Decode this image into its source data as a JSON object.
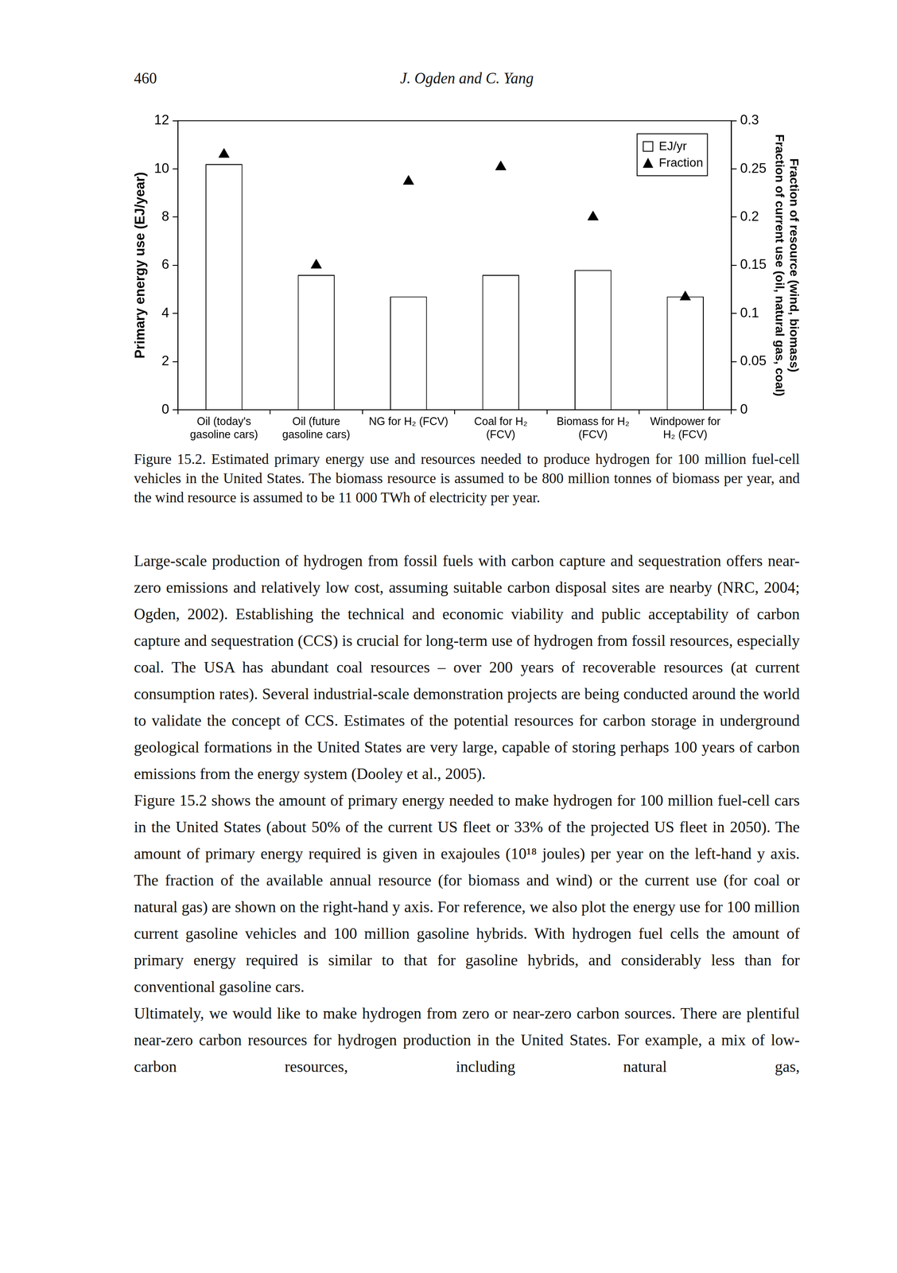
{
  "header": {
    "page": "460",
    "running_head": "J. Ogden and C. Yang"
  },
  "chart_data": {
    "type": "bar",
    "categories": [
      [
        "Oil (today's",
        "gasoline cars)"
      ],
      [
        "Oil (future",
        "gasoline cars)"
      ],
      [
        "NG for H₂ (FCV)"
      ],
      [
        "Coal for H₂",
        "(FCV)"
      ],
      [
        "Biomass for H₂",
        "(FCV)"
      ],
      [
        "Windpower for",
        "H₂ (FCV)"
      ]
    ],
    "series": [
      {
        "name": "EJ/yr",
        "type": "bar",
        "color": "#ffffff",
        "values": [
          10.2,
          5.6,
          4.7,
          5.6,
          5.8,
          4.7
        ]
      },
      {
        "name": "Fraction",
        "type": "scatter",
        "marker": "triangle",
        "color": "#000000",
        "axis": "y2",
        "values": [
          0.265,
          0.15,
          0.237,
          0.252,
          0.2,
          0.117
        ]
      }
    ],
    "y_label": "Primary energy use (EJ/year)",
    "y2_label": [
      "Fraction of resource (wind, biomass)",
      "Fraction of current use (oil, natural gas, coal)"
    ],
    "ylim": [
      0,
      12
    ],
    "yticks": [
      0,
      2,
      4,
      6,
      8,
      10,
      12
    ],
    "y2lim": [
      0,
      0.3
    ],
    "y2ticks": [
      0,
      0.05,
      0.1,
      0.15,
      0.2,
      0.25,
      0.3
    ],
    "grid": false,
    "legend": "top-right"
  },
  "caption": "Figure 15.2. Estimated primary energy use and resources needed to produce hydrogen for 100 million fuel-cell vehicles in the United States. The biomass resource is assumed to be 800 million tonnes of biomass per year, and the wind resource is assumed to be 11 000 TWh of electricity per year.",
  "paragraphs": [
    "Large-scale production of hydrogen from fossil fuels with carbon capture and sequestration offers near-zero emissions and relatively low cost, assuming suitable carbon disposal sites are nearby (NRC, 2004; Ogden, 2002). Establishing the technical and economic viability and public acceptability of carbon capture and sequestration (CCS) is crucial for long-term use of hydrogen from fossil resources, especially coal. The USA has abundant coal resources – over 200 years of recoverable resources (at current consumption rates). Several industrial-scale demonstration projects are being conducted around the world to validate the concept of CCS. Estimates of the potential resources for carbon storage in underground geological formations in the United States are very large, capable of storing perhaps 100 years of carbon emissions from the energy system (Dooley et al., 2005).",
    "Figure 15.2 shows the amount of primary energy needed to make hydrogen for 100 million fuel-cell cars in the United States (about 50% of the current US fleet or 33% of the projected US fleet in 2050). The amount of primary energy required is given in exajoules (10¹⁸ joules) per year on the left-hand y axis. The fraction of the available annual resource (for biomass and wind) or the current use (for coal or natural gas) are shown on the right-hand y axis. For reference, we also plot the energy use for 100 million current gasoline vehicles and 100 million gasoline hybrids. With hydrogen fuel cells the amount of primary energy required is similar to that for gasoline hybrids, and considerably less than for conventional gasoline cars.",
    "Ultimately, we would like to make hydrogen from zero or near-zero carbon sources. There are plentiful near-zero carbon resources for hydrogen production in the United States. For example, a mix of low-carbon resources, including natural gas,"
  ]
}
